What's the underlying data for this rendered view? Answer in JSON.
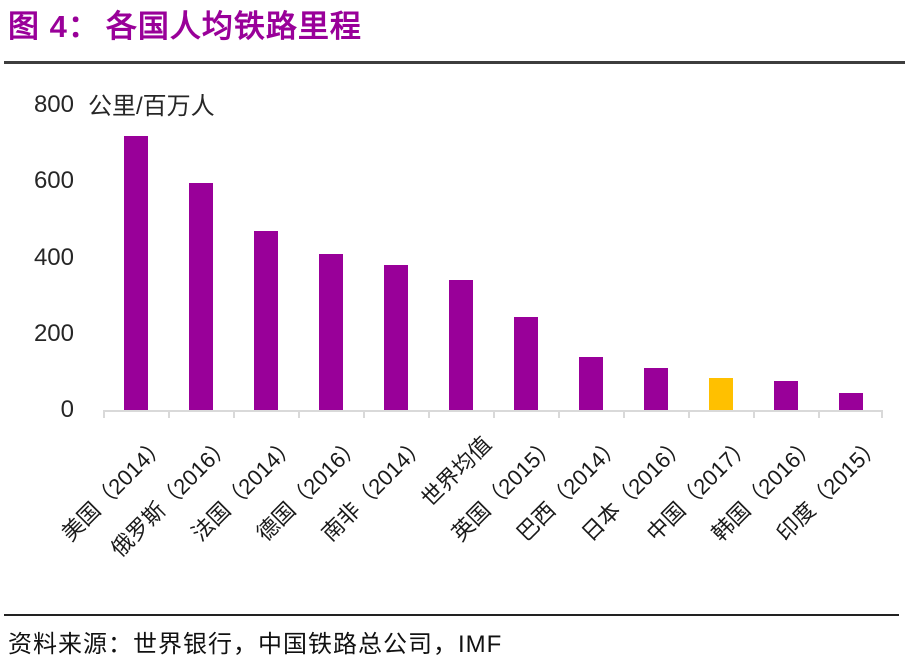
{
  "header": {
    "figure_label": "图 4：",
    "title": "各国人均铁路里程"
  },
  "chart_data": {
    "type": "bar",
    "title": "各国人均铁路里程",
    "unit_label": "公里/百万人",
    "categories": [
      "美国（2014）",
      "俄罗斯（2016）",
      "法国（2014）",
      "德国（2016）",
      "南非（2014）",
      "世界均值",
      "英国（2015）",
      "巴西（2014）",
      "日本（2016）",
      "中国（2017）",
      "韩国（2016）",
      "印度（2015）"
    ],
    "values": [
      720,
      595,
      470,
      410,
      380,
      340,
      245,
      140,
      110,
      85,
      75,
      45
    ],
    "highlight_index": 9,
    "bar_color": "#990099",
    "highlight_color": "#FFC000",
    "y_ticks": [
      0,
      200,
      400,
      600,
      800
    ],
    "ylim": [
      0,
      800
    ],
    "xlabel": "",
    "ylabel": "公里/百万人",
    "grid": false,
    "legend": false,
    "x_label_rotation_deg": -45
  },
  "footer": {
    "source": "资料来源：世界银行，中国铁路总公司，IMF"
  },
  "colors": {
    "title_accent": "#990099",
    "axis_line": "#d9d9d9",
    "rule_dark": "#3d3d3d"
  }
}
